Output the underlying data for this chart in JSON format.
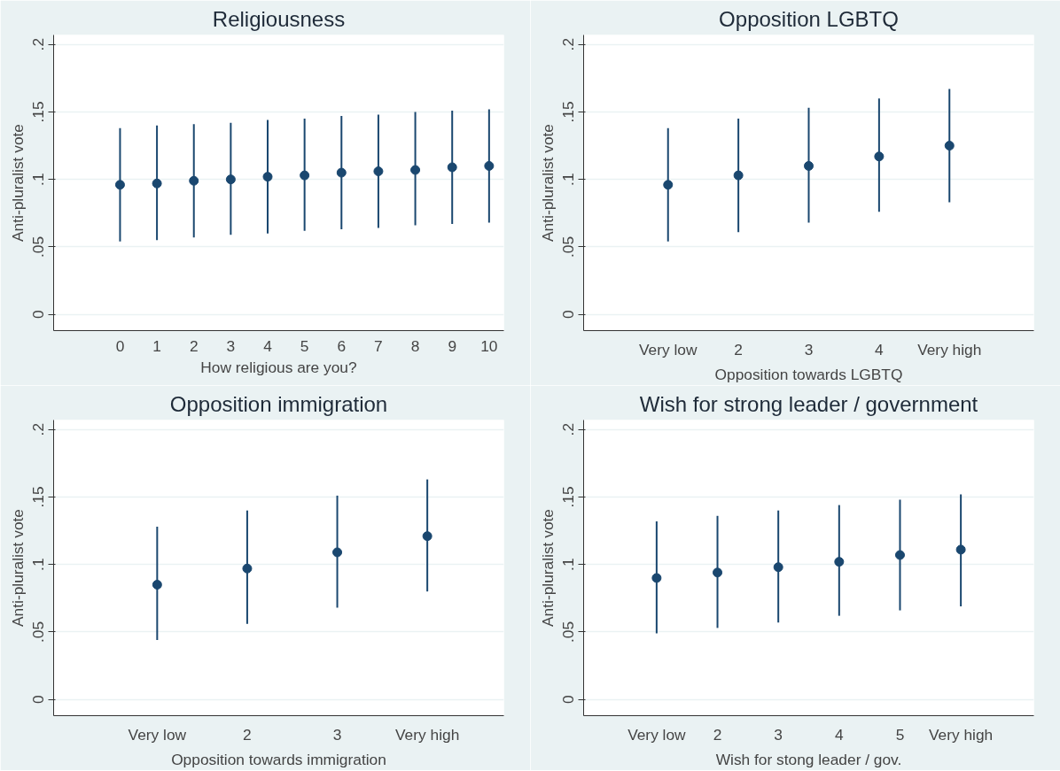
{
  "chart_data": [
    {
      "type": "scatter",
      "title": "Religiousness",
      "xlabel": "How religious are you?",
      "ylabel": "Anti-pluralist vote",
      "x": [
        0,
        1,
        2,
        3,
        4,
        5,
        6,
        7,
        8,
        9,
        10
      ],
      "series": [
        {
          "color": "#1a476f",
          "values": [
            0.096,
            0.097,
            0.099,
            0.1,
            0.102,
            0.103,
            0.105,
            0.106,
            0.107,
            0.109,
            0.11
          ],
          "errors": [
            [
              0.054,
              0.138
            ],
            [
              0.055,
              0.14
            ],
            [
              0.057,
              0.141
            ],
            [
              0.059,
              0.142
            ],
            [
              0.06,
              0.144
            ],
            [
              0.062,
              0.145
            ],
            [
              0.063,
              0.147
            ],
            [
              0.064,
              0.148
            ],
            [
              0.066,
              0.15
            ],
            [
              0.067,
              0.151
            ],
            [
              0.068,
              0.152
            ]
          ]
        }
      ],
      "xlim": [
        -1.8,
        10.4
      ],
      "xticks": [
        0,
        1,
        2,
        3,
        4,
        5,
        6,
        7,
        8,
        9,
        10
      ],
      "ylim": [
        -0.012,
        0.207
      ],
      "yticks": [
        0,
        {
          "value": 0.05,
          "label": ".05"
        },
        {
          "value": 0.1,
          "label": ".1"
        },
        {
          "value": 0.15,
          "label": ".15"
        },
        {
          "value": 0.2,
          "label": ".2"
        }
      ],
      "grid": "y",
      "marker": "circle"
    },
    {
      "type": "scatter",
      "title": "Opposition LGBTQ",
      "xlabel": "Opposition towards LGBTQ",
      "ylabel": "Anti-pluralist vote",
      "x": [
        1,
        2,
        3,
        4,
        5
      ],
      "series": [
        {
          "color": "#1a476f",
          "values": [
            0.096,
            0.103,
            0.11,
            0.117,
            0.125
          ],
          "errors": [
            [
              0.054,
              0.138
            ],
            [
              0.061,
              0.145
            ],
            [
              0.068,
              0.153
            ],
            [
              0.076,
              0.16
            ],
            [
              0.083,
              0.167
            ]
          ]
        }
      ],
      "xlim": [
        -0.2,
        6.2
      ],
      "xticks": [
        {
          "value": 1,
          "label": "Very low"
        },
        2,
        3,
        4,
        {
          "value": 5,
          "label": "Very high"
        }
      ],
      "ylim": [
        -0.012,
        0.207
      ],
      "yticks": [
        0,
        {
          "value": 0.05,
          "label": ".05"
        },
        {
          "value": 0.1,
          "label": ".1"
        },
        {
          "value": 0.15,
          "label": ".15"
        },
        {
          "value": 0.2,
          "label": ".2"
        }
      ],
      "grid": "y",
      "marker": "circle"
    },
    {
      "type": "scatter",
      "title": "Opposition immigration",
      "xlabel": "Opposition towards immigration",
      "ylabel": "Anti-pluralist vote",
      "x": [
        1,
        2,
        3,
        4
      ],
      "series": [
        {
          "color": "#1a476f",
          "values": [
            0.085,
            0.097,
            0.109,
            0.121
          ],
          "errors": [
            [
              0.044,
              0.128
            ],
            [
              0.056,
              0.14
            ],
            [
              0.068,
              0.151
            ],
            [
              0.08,
              0.163
            ]
          ]
        }
      ],
      "xlim": [
        -0.15,
        4.85
      ],
      "xticks": [
        {
          "value": 1,
          "label": "Very low"
        },
        2,
        3,
        {
          "value": 4,
          "label": "Very high"
        }
      ],
      "ylim": [
        -0.012,
        0.207
      ],
      "yticks": [
        0,
        {
          "value": 0.05,
          "label": ".05"
        },
        {
          "value": 0.1,
          "label": ".1"
        },
        {
          "value": 0.15,
          "label": ".15"
        },
        {
          "value": 0.2,
          "label": ".2"
        }
      ],
      "grid": "y",
      "marker": "circle"
    },
    {
      "type": "scatter",
      "title": "Wish for strong leader / government",
      "xlabel": "Wish for stong leader / gov.",
      "ylabel": "Anti-pluralist vote",
      "x": [
        1,
        2,
        3,
        4,
        5,
        6
      ],
      "series": [
        {
          "color": "#1a476f",
          "values": [
            0.09,
            0.094,
            0.098,
            0.102,
            0.107,
            0.111
          ],
          "errors": [
            [
              0.049,
              0.132
            ],
            [
              0.053,
              0.136
            ],
            [
              0.057,
              0.14
            ],
            [
              0.062,
              0.144
            ],
            [
              0.066,
              0.148
            ],
            [
              0.069,
              0.152
            ]
          ]
        }
      ],
      "xlim": [
        -0.2,
        7.2
      ],
      "xticks": [
        {
          "value": 1,
          "label": "Very low"
        },
        2,
        3,
        4,
        5,
        {
          "value": 6,
          "label": "Very high"
        }
      ],
      "ylim": [
        -0.012,
        0.207
      ],
      "yticks": [
        0,
        {
          "value": 0.05,
          "label": ".05"
        },
        {
          "value": 0.1,
          "label": ".1"
        },
        {
          "value": 0.15,
          "label": ".15"
        },
        {
          "value": 0.2,
          "label": ".2"
        }
      ],
      "grid": "y",
      "marker": "circle"
    }
  ]
}
